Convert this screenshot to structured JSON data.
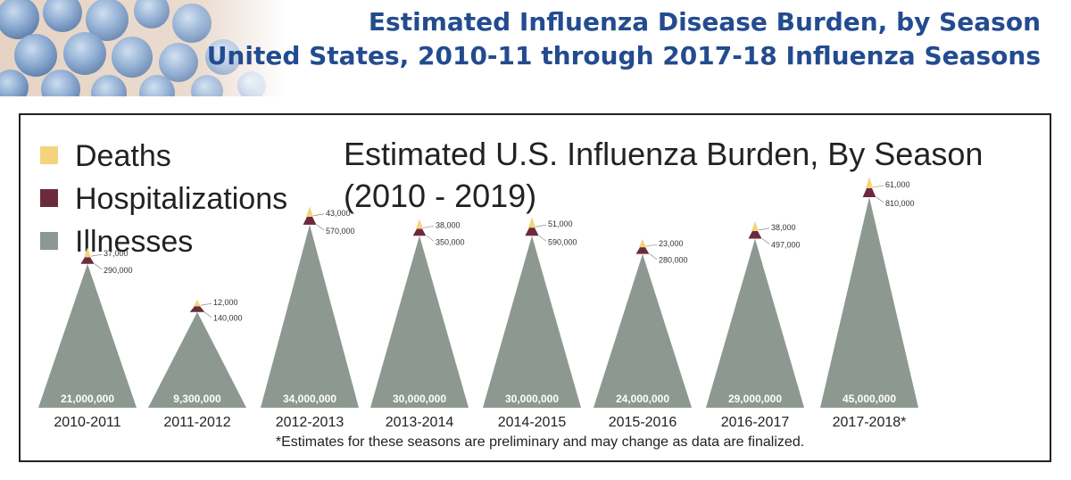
{
  "header": {
    "title_line1": "Estimated Influenza Disease Burden, by Season",
    "title_line2": "United States, 2010-11 through 2017-18 Influenza Seasons"
  },
  "colors": {
    "deaths": "#f3d47c",
    "hospitalizations": "#6b2b3c",
    "illnesses": "#8d9990",
    "header_text": "#234b8f"
  },
  "chart_data": {
    "type": "area",
    "title": "Estimated U.S. Influenza Burden, By Season",
    "subtitle": "(2010 - 2019)",
    "legend": [
      {
        "label": "Deaths",
        "color": "#f3d47c"
      },
      {
        "label": "Hospitalizations",
        "color": "#6b2b3c"
      },
      {
        "label": "Illnesses",
        "color": "#8d9990"
      }
    ],
    "legend_position": "top-left",
    "categories": [
      "2010-2011",
      "2011-2012",
      "2012-2013",
      "2013-2014",
      "2014-2015",
      "2015-2016",
      "2016-2017",
      "2017-2018*"
    ],
    "series": [
      {
        "name": "Illnesses",
        "values": [
          21000000,
          9300000,
          34000000,
          30000000,
          30000000,
          24000000,
          29000000,
          45000000
        ],
        "labels": [
          "21,000,000",
          "9,300,000",
          "34,000,000",
          "30,000,000",
          "30,000,000",
          "24,000,000",
          "29,000,000",
          "45,000,000"
        ]
      },
      {
        "name": "Hospitalizations",
        "values": [
          290000,
          140000,
          570000,
          350000,
          590000,
          280000,
          497000,
          810000
        ],
        "labels": [
          "290,000",
          "140,000",
          "570,000",
          "350,000",
          "590,000",
          "280,000",
          "497,000",
          "810,000"
        ]
      },
      {
        "name": "Deaths",
        "values": [
          37000,
          12000,
          43000,
          38000,
          51000,
          23000,
          38000,
          61000
        ],
        "labels": [
          "37,000",
          "12,000",
          "43,000",
          "38,000",
          "51,000",
          "23,000",
          "38,000",
          "61,000"
        ]
      }
    ],
    "footnote": "*Estimates for these seasons are preliminary and may change as data are finalized."
  }
}
